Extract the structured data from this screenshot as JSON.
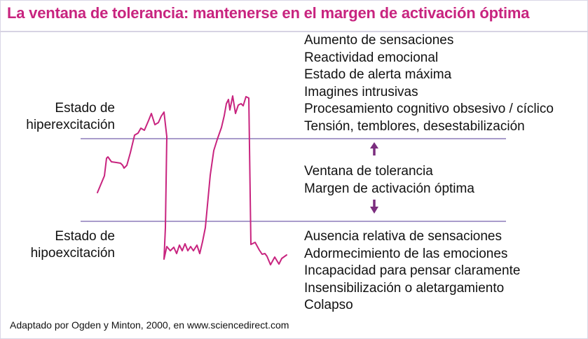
{
  "title": "La ventana de tolerancia: mantenerse en el margen de activación óptima",
  "hyper_label": [
    "Estado de",
    "hiperexcitación"
  ],
  "hypo_label": [
    "Estado de",
    "hipoexcitación"
  ],
  "hyper_items": [
    "Aumento de sensaciones",
    "Reactividad emocional",
    "Estado de alerta máxima",
    "Imagines intrusivas",
    "Procesamiento cognitivo obsesivo / cíclico",
    "Tensión, temblores, desestabilización"
  ],
  "window_items": [
    "Ventana de tolerancia",
    "Margen de activación óptima"
  ],
  "hypo_items": [
    "Ausencia relativa de sensaciones",
    "Adormecimiento de las emociones",
    "Incapacidad para pensar claramente",
    "Insensibilización o aletargamiento",
    "Colapso"
  ],
  "footer": "Adaptado por Ogden y Minton, 2000, en www.sciencedirect.com",
  "colors": {
    "accent": "#c8247f",
    "boundary_line": "#a99ccb",
    "arrow": "#7b2d7e",
    "text": "#111111"
  }
}
